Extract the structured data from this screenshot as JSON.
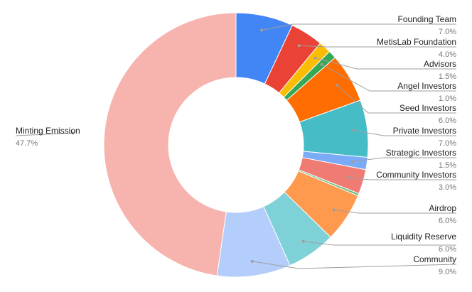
{
  "chart_data": {
    "type": "pie",
    "title": "",
    "donut": true,
    "start_angle_deg": 0,
    "direction": "clockwise",
    "legend": "none",
    "slices": [
      {
        "label": "Founding Team",
        "value": 7.0,
        "display": "7.0%",
        "color": "#4285f4"
      },
      {
        "label": "MetisLab Foundation",
        "value": 4.0,
        "display": "4.0%",
        "color": "#ea4335"
      },
      {
        "label": "Advisors",
        "value": 1.5,
        "display": "1.5%",
        "color": "#fbbc04"
      },
      {
        "label": "Angel Investors",
        "value": 1.0,
        "display": "1.0%",
        "color": "#34a853"
      },
      {
        "label": "Seed Investors",
        "value": 6.0,
        "display": "6.0%",
        "color": "#ff6d01"
      },
      {
        "label": "Private Investors",
        "value": 7.0,
        "display": "7.0%",
        "color": "#46bdc6"
      },
      {
        "label": "Strategic Investors",
        "value": 1.5,
        "display": "1.5%",
        "color": "#7baaf7"
      },
      {
        "label": "Community Investors",
        "value": 3.0,
        "display": "3.0%",
        "color": "#f07b72"
      },
      {
        "label": "",
        "value": 0.3,
        "display": "",
        "color": "#71c287"
      },
      {
        "label": "Airdrop",
        "value": 6.0,
        "display": "6.0%",
        "color": "#ff994d"
      },
      {
        "label": "Liquidity Reserve",
        "value": 6.0,
        "display": "6.0%",
        "color": "#7ed1d7"
      },
      {
        "label": "Community",
        "value": 9.0,
        "display": "9.0%",
        "color": "#b3cefb"
      },
      {
        "label": "Minting Emission",
        "value": 47.7,
        "display": "47.7%",
        "color": "#f7b4ae"
      }
    ]
  }
}
